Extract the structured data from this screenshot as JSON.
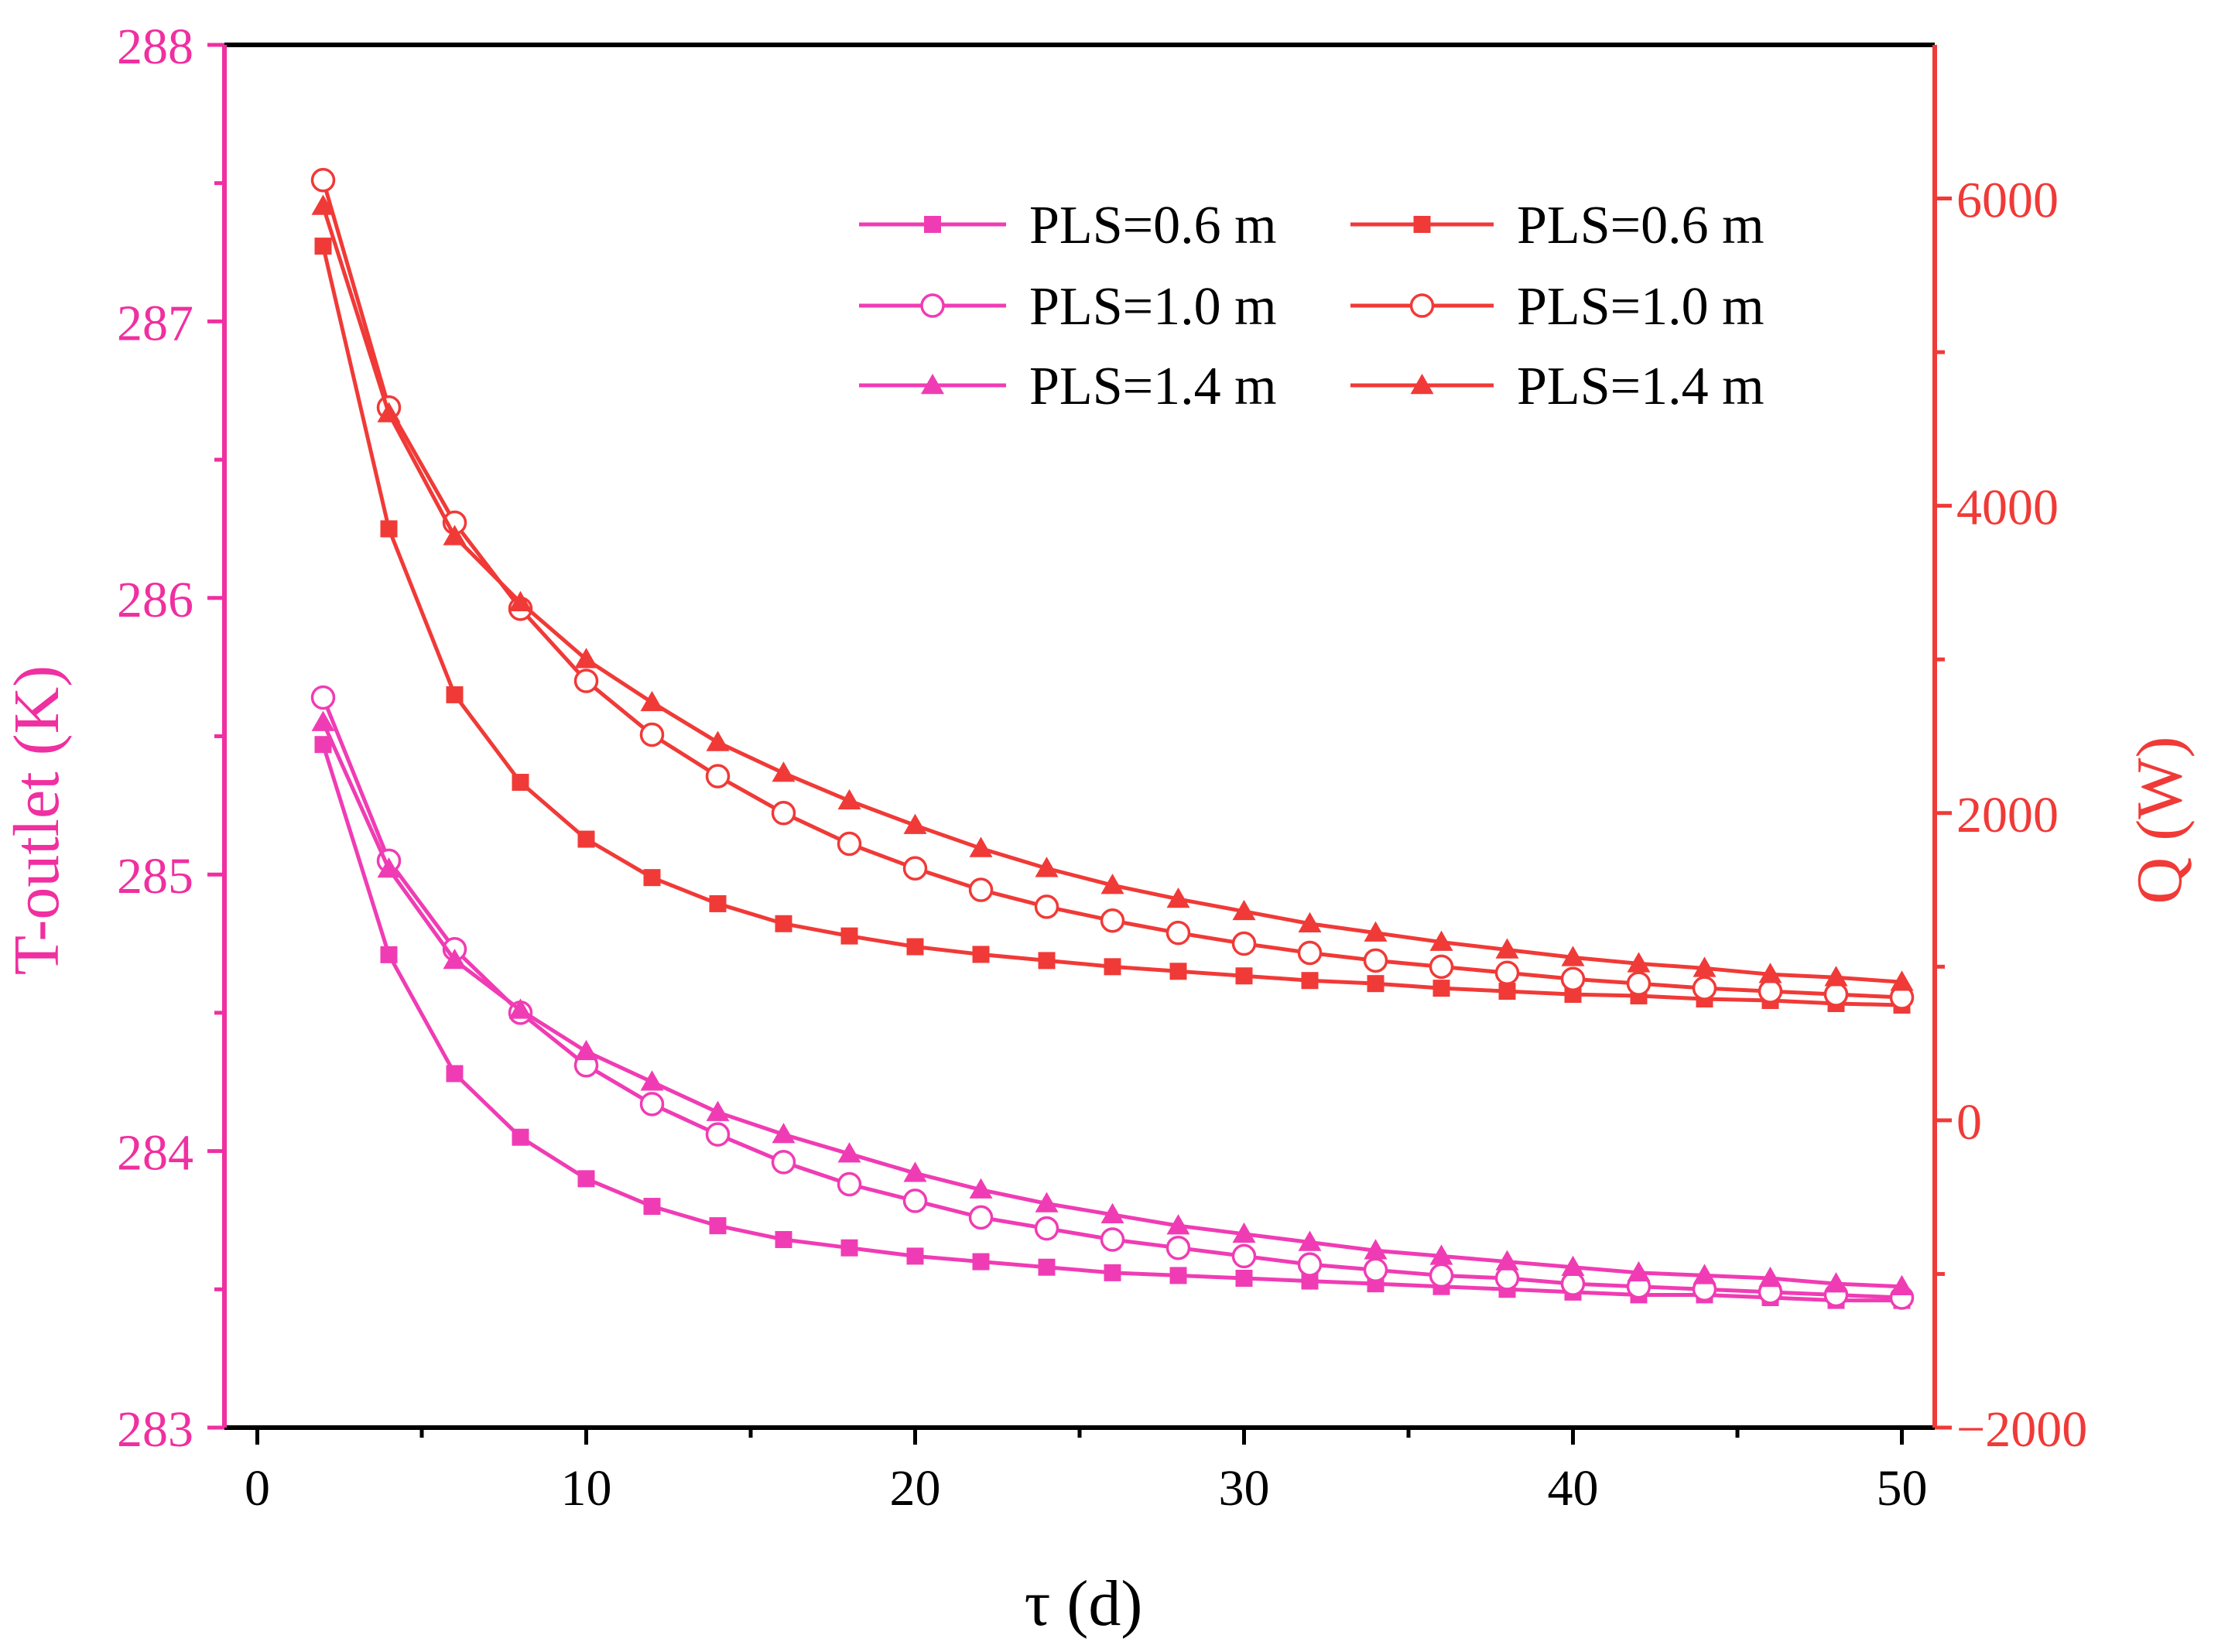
{
  "colors": {
    "left_axis": "#f02fa0",
    "right_axis": "#f03a37",
    "pink_series": "#f03cb4",
    "red_series": "#f03a37",
    "frame": "#000000"
  },
  "chart_data": {
    "type": "line",
    "xlabel": "τ (d)",
    "ylabel_left": "T-outlet (K)",
    "ylabel_right": "Q (W)",
    "xlim": [
      -1,
      51
    ],
    "ylim_left": [
      283,
      288
    ],
    "ylim_right": [
      -2000,
      7000
    ],
    "xticks": [
      0,
      10,
      20,
      30,
      40,
      50
    ],
    "xtick_labels": [
      "0",
      "10",
      "20",
      "30",
      "40",
      "50"
    ],
    "yticks_left": [
      283,
      284,
      285,
      286,
      287,
      288
    ],
    "ytick_labels_left": [
      "283",
      "284",
      "285",
      "286",
      "287",
      "288"
    ],
    "yticks_right": [
      -2000,
      0,
      2000,
      4000,
      6000
    ],
    "ytick_labels_right": [
      "−2000",
      "0",
      "2000",
      "4000",
      "6000"
    ],
    "x": [
      2,
      4,
      6,
      8,
      10,
      12,
      14,
      16,
      18,
      20,
      22,
      24,
      26,
      28,
      30,
      32,
      34,
      36,
      38,
      40,
      42,
      44,
      46,
      48,
      50
    ],
    "legend_position": "top-right",
    "series": [
      {
        "name": "PLS=0.6 m",
        "axis": "left",
        "marker": "square",
        "color": "#f03cb4",
        "values": [
          285.47,
          284.71,
          284.28,
          284.05,
          283.9,
          283.8,
          283.73,
          283.68,
          283.65,
          283.62,
          283.6,
          283.58,
          283.56,
          283.55,
          283.54,
          283.53,
          283.52,
          283.51,
          283.5,
          283.49,
          283.48,
          283.48,
          283.47,
          283.46,
          283.46
        ]
      },
      {
        "name": "PLS=1.0 m",
        "axis": "left",
        "marker": "circle-open",
        "color": "#f03cb4",
        "values": [
          285.64,
          285.05,
          284.73,
          284.5,
          284.31,
          284.17,
          284.06,
          283.96,
          283.88,
          283.82,
          283.76,
          283.72,
          283.68,
          283.65,
          283.62,
          283.59,
          283.57,
          283.55,
          283.54,
          283.52,
          283.51,
          283.5,
          283.49,
          283.48,
          283.47
        ]
      },
      {
        "name": "PLS=1.4 m",
        "axis": "left",
        "marker": "triangle",
        "color": "#f03cb4",
        "values": [
          285.55,
          285.02,
          284.69,
          284.51,
          284.36,
          284.25,
          284.14,
          284.06,
          283.99,
          283.92,
          283.86,
          283.81,
          283.77,
          283.73,
          283.7,
          283.67,
          283.64,
          283.62,
          283.6,
          283.58,
          283.56,
          283.55,
          283.54,
          283.52,
          283.51
        ]
      },
      {
        "name": "PLS=0.6 m",
        "axis": "right",
        "marker": "square",
        "color": "#f03a37",
        "values": [
          5690,
          3850,
          2770,
          2200,
          1830,
          1580,
          1410,
          1280,
          1200,
          1130,
          1080,
          1040,
          1000,
          970,
          940,
          910,
          890,
          860,
          840,
          820,
          810,
          790,
          780,
          760,
          750
        ]
      },
      {
        "name": "PLS=1.0 m",
        "axis": "right",
        "marker": "circle-open",
        "color": "#f03a37",
        "values": [
          6120,
          4640,
          3890,
          3330,
          2860,
          2510,
          2240,
          2000,
          1800,
          1640,
          1500,
          1390,
          1300,
          1220,
          1150,
          1090,
          1040,
          1000,
          960,
          920,
          890,
          860,
          840,
          820,
          800
        ]
      },
      {
        "name": "PLS=1.4 m",
        "axis": "right",
        "marker": "triangle",
        "color": "#f03a37",
        "values": [
          5950,
          4600,
          3800,
          3370,
          3000,
          2720,
          2460,
          2260,
          2080,
          1920,
          1770,
          1640,
          1530,
          1440,
          1360,
          1280,
          1220,
          1160,
          1110,
          1060,
          1020,
          990,
          950,
          930,
          900
        ]
      }
    ]
  }
}
